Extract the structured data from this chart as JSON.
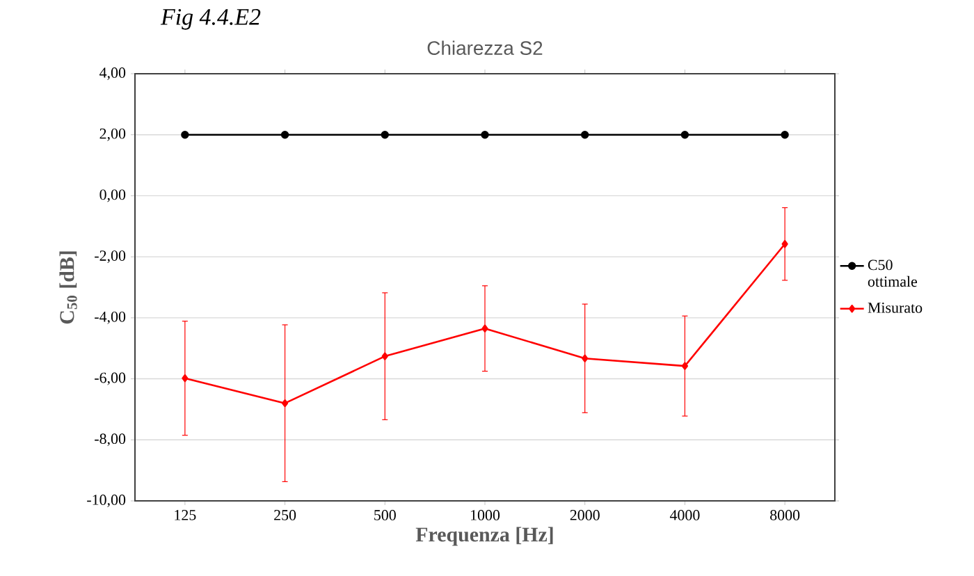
{
  "chart_data": {
    "type": "line",
    "title": "Chiarezza S2",
    "xlabel": "Frequenza [Hz]",
    "ylabel": "C$_{50}$ [dB]",
    "annotations": [
      "Fig  4.4.E2"
    ],
    "categories": [
      "125",
      "250",
      "500",
      "1000",
      "2000",
      "4000",
      "8000"
    ],
    "series": [
      {
        "name": "C50 ottimale",
        "color": "#000000",
        "marker": "circle",
        "values": [
          2,
          2,
          2,
          2,
          2,
          2,
          2
        ]
      },
      {
        "name": "Misurato",
        "color": "#ff0000",
        "marker": "diamond",
        "values": [
          -5.98,
          -6.8,
          -5.26,
          -4.35,
          -5.33,
          -5.58,
          -1.58
        ],
        "errors": [
          1.87,
          2.57,
          2.08,
          1.4,
          1.78,
          1.64,
          1.19
        ]
      }
    ],
    "ylim": [
      -10,
      4
    ],
    "yticks": [
      {
        "value": -10,
        "label": "-10,00"
      },
      {
        "value": -8,
        "label": "-8,00"
      },
      {
        "value": -6,
        "label": "-6,00"
      },
      {
        "value": -4,
        "label": "-4,00"
      },
      {
        "value": -2,
        "label": "-2,00"
      },
      {
        "value": 0,
        "label": "0,00"
      },
      {
        "value": 2,
        "label": "2,00"
      },
      {
        "value": 4,
        "label": "4,00"
      }
    ],
    "grid": "y",
    "legend": "right",
    "line_style": "solid"
  }
}
